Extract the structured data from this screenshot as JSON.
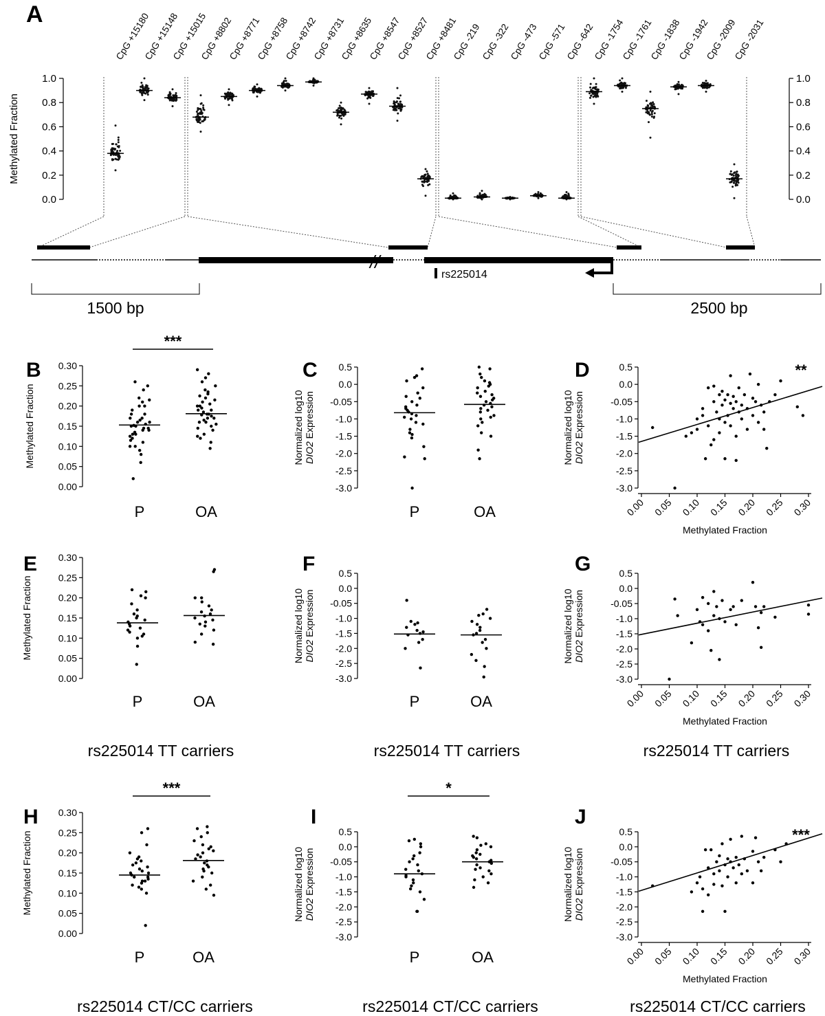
{
  "figure": {
    "panel_letters": [
      "A",
      "B",
      "C",
      "D",
      "E",
      "F",
      "G",
      "H",
      "I",
      "J"
    ],
    "groups": [
      "P",
      "OA"
    ],
    "ylabel_methylation": "Methylated Fraction",
    "ylabel_expression_line1": "Normalized log10",
    "ylabel_expression_gene": "DIO2",
    "ylabel_expression_rest": " Expression",
    "xlabel_methylation": "Methylated Fraction",
    "row_captions": [
      "rs225014 TT carriers",
      "rs225014 CT/CC carriers"
    ]
  },
  "panel_a": {
    "snp_label": "rs225014",
    "left_scale_label": "1500 bp",
    "right_scale_label": "2500 bp",
    "y_ticks": [
      "0.0",
      "0.2",
      "0.4",
      "0.6",
      "0.8",
      "1.0"
    ]
  },
  "chart_data": [
    {
      "panel": "A",
      "type": "scatter",
      "ylabel": "Methylated Fraction",
      "ylim": [
        0,
        1
      ],
      "categories": [
        "CpG +15180",
        "CpG +15148",
        "CpG +15015",
        "CpG +8802",
        "CpG +8771",
        "CpG +8758",
        "CpG +8742",
        "CpG +8731",
        "CpG +8635",
        "CpG +8547",
        "CpG +8527",
        "CpG +8481",
        "CpG -219",
        "CpG -322",
        "CpG -473",
        "CpG -571",
        "CpG -642",
        "CpG -1754",
        "CpG -1761",
        "CpG -1838",
        "CpG -1942",
        "CpG -2009",
        "CpG -2031"
      ],
      "medians": [
        0.38,
        0.9,
        0.84,
        0.68,
        0.85,
        0.9,
        0.94,
        0.97,
        0.72,
        0.87,
        0.77,
        0.17,
        0.01,
        0.02,
        0.01,
        0.03,
        0.01,
        0.89,
        0.94,
        0.75,
        0.93,
        0.94,
        0.17
      ],
      "mins": [
        0.24,
        0.82,
        0.77,
        0.56,
        0.78,
        0.85,
        0.9,
        0.94,
        0.62,
        0.79,
        0.65,
        0.03,
        0.0,
        0.0,
        0.0,
        0.01,
        0.0,
        0.79,
        0.89,
        0.51,
        0.87,
        0.89,
        0.01
      ],
      "maxs": [
        0.61,
        1.0,
        0.91,
        0.86,
        0.91,
        0.95,
        1.0,
        1.0,
        0.8,
        0.92,
        0.92,
        0.25,
        0.05,
        0.07,
        0.02,
        0.06,
        0.06,
        1.0,
        1.0,
        0.89,
        0.97,
        0.98,
        0.29
      ]
    },
    {
      "panel": "B",
      "type": "scatter",
      "ylabel": "Methylated Fraction",
      "ylim": [
        0,
        0.3
      ],
      "categories": [
        "P",
        "OA"
      ],
      "significance": "***",
      "series": [
        {
          "name": "P",
          "median": 0.153,
          "values": [
            0.02,
            0.06,
            0.08,
            0.09,
            0.1,
            0.1,
            0.11,
            0.115,
            0.12,
            0.125,
            0.13,
            0.13,
            0.135,
            0.14,
            0.14,
            0.145,
            0.145,
            0.15,
            0.15,
            0.152,
            0.155,
            0.16,
            0.16,
            0.165,
            0.17,
            0.17,
            0.18,
            0.18,
            0.19,
            0.2,
            0.2,
            0.21,
            0.215,
            0.22,
            0.24,
            0.25,
            0.26
          ]
        },
        {
          "name": "OA",
          "median": 0.181,
          "values": [
            0.095,
            0.11,
            0.12,
            0.125,
            0.13,
            0.14,
            0.145,
            0.15,
            0.155,
            0.16,
            0.16,
            0.165,
            0.17,
            0.17,
            0.175,
            0.178,
            0.18,
            0.18,
            0.185,
            0.19,
            0.19,
            0.195,
            0.2,
            0.2,
            0.205,
            0.21,
            0.215,
            0.22,
            0.225,
            0.23,
            0.235,
            0.24,
            0.25,
            0.26,
            0.27,
            0.28,
            0.29
          ]
        }
      ]
    },
    {
      "panel": "C",
      "type": "scatter",
      "ylabel": "Normalized log10 DIO2 Expression",
      "ylim": [
        -3,
        0.5
      ],
      "categories": [
        "P",
        "OA"
      ],
      "series": [
        {
          "name": "P",
          "median": -0.82,
          "values": [
            -3.0,
            -2.15,
            -2.1,
            -1.8,
            -1.55,
            -1.45,
            -1.4,
            -1.3,
            -1.15,
            -1.1,
            -1.0,
            -0.95,
            -0.9,
            -0.85,
            -0.8,
            -0.75,
            -0.7,
            -0.65,
            -0.6,
            -0.5,
            -0.4,
            -0.35,
            -0.25,
            -0.1,
            0.1,
            0.2,
            0.25,
            0.45
          ]
        },
        {
          "name": "OA",
          "median": -0.58,
          "values": [
            -2.15,
            -1.9,
            -1.5,
            -1.4,
            -1.2,
            -1.1,
            -1.0,
            -0.95,
            -0.9,
            -0.8,
            -0.75,
            -0.7,
            -0.65,
            -0.6,
            -0.55,
            -0.5,
            -0.45,
            -0.4,
            -0.35,
            -0.3,
            -0.25,
            -0.2,
            -0.1,
            -0.05,
            0.0,
            0.05,
            0.1,
            0.2,
            0.3,
            0.45,
            0.5
          ]
        }
      ]
    },
    {
      "panel": "D",
      "type": "scatter",
      "xlabel": "Methylated Fraction",
      "ylabel": "Normalized log10 DIO2 Expression",
      "xlim": [
        0,
        0.3
      ],
      "ylim": [
        -3,
        0.5
      ],
      "significance": "**",
      "regression": {
        "intercept": -1.65,
        "slope": 4.9
      },
      "points": [
        [
          0.02,
          -1.25
        ],
        [
          0.06,
          -3.0
        ],
        [
          0.08,
          -1.5
        ],
        [
          0.09,
          -1.4
        ],
        [
          0.1,
          -1.3
        ],
        [
          0.1,
          -1.0
        ],
        [
          0.11,
          -0.7
        ],
        [
          0.11,
          -0.9
        ],
        [
          0.115,
          -2.15
        ],
        [
          0.12,
          -0.1
        ],
        [
          0.12,
          -1.2
        ],
        [
          0.125,
          -1.75
        ],
        [
          0.13,
          -0.5
        ],
        [
          0.13,
          -1.6
        ],
        [
          0.13,
          -0.05
        ],
        [
          0.135,
          -0.8
        ],
        [
          0.14,
          -0.3
        ],
        [
          0.14,
          -1.0
        ],
        [
          0.14,
          -1.4
        ],
        [
          0.145,
          -0.6
        ],
        [
          0.145,
          -0.2
        ],
        [
          0.15,
          -0.45
        ],
        [
          0.15,
          -1.1
        ],
        [
          0.15,
          -2.15
        ],
        [
          0.155,
          -0.3
        ],
        [
          0.155,
          -0.9
        ],
        [
          0.16,
          -0.55
        ],
        [
          0.16,
          -1.2
        ],
        [
          0.16,
          0.25
        ],
        [
          0.165,
          -0.7
        ],
        [
          0.165,
          -0.35
        ],
        [
          0.17,
          -0.5
        ],
        [
          0.17,
          -1.5
        ],
        [
          0.17,
          -2.2
        ],
        [
          0.175,
          -0.8
        ],
        [
          0.175,
          -0.1
        ],
        [
          0.18,
          -0.6
        ],
        [
          0.18,
          -1.0
        ],
        [
          0.185,
          -0.3
        ],
        [
          0.19,
          -0.7
        ],
        [
          0.19,
          -1.3
        ],
        [
          0.195,
          0.3
        ],
        [
          0.2,
          -0.4
        ],
        [
          0.2,
          -0.9
        ],
        [
          0.205,
          -0.5
        ],
        [
          0.21,
          -1.1
        ],
        [
          0.21,
          0.0
        ],
        [
          0.215,
          -0.6
        ],
        [
          0.22,
          -0.8
        ],
        [
          0.22,
          -1.3
        ],
        [
          0.225,
          -1.85
        ],
        [
          0.23,
          -0.5
        ],
        [
          0.24,
          -0.3
        ],
        [
          0.25,
          0.1
        ],
        [
          0.28,
          -0.65
        ],
        [
          0.29,
          -0.9
        ]
      ]
    },
    {
      "panel": "E",
      "type": "scatter",
      "ylabel": "Methylated Fraction",
      "ylim": [
        0,
        0.3
      ],
      "categories": [
        "P",
        "OA"
      ],
      "series": [
        {
          "name": "P",
          "median": 0.138,
          "values": [
            0.035,
            0.08,
            0.1,
            0.105,
            0.11,
            0.115,
            0.12,
            0.125,
            0.13,
            0.135,
            0.14,
            0.145,
            0.15,
            0.155,
            0.16,
            0.17,
            0.185,
            0.2,
            0.205,
            0.215,
            0.22
          ]
        },
        {
          "name": "OA",
          "median": 0.156,
          "values": [
            0.085,
            0.09,
            0.11,
            0.12,
            0.13,
            0.135,
            0.14,
            0.145,
            0.15,
            0.155,
            0.16,
            0.165,
            0.17,
            0.18,
            0.19,
            0.2,
            0.2,
            0.265,
            0.27
          ]
        }
      ]
    },
    {
      "panel": "F",
      "type": "scatter",
      "ylabel": "Normalized log10 DIO2 Expression",
      "ylim": [
        -3,
        0.5
      ],
      "categories": [
        "P",
        "OA"
      ],
      "series": [
        {
          "name": "P",
          "median": -1.52,
          "values": [
            -2.65,
            -2.0,
            -1.8,
            -1.7,
            -1.55,
            -1.5,
            -1.45,
            -1.4,
            -1.3,
            -1.2,
            -1.15,
            -1.1,
            -0.4
          ]
        },
        {
          "name": "OA",
          "median": -1.55,
          "values": [
            -2.95,
            -2.6,
            -2.4,
            -2.2,
            -2.0,
            -1.8,
            -1.7,
            -1.55,
            -1.5,
            -1.4,
            -1.3,
            -1.2,
            -1.1,
            -1.0,
            -0.9,
            -0.85,
            -0.7
          ]
        }
      ]
    },
    {
      "panel": "G",
      "type": "scatter",
      "xlabel": "Methylated Fraction",
      "ylabel": "Normalized log10 DIO2 Expression",
      "xlim": [
        0,
        0.3
      ],
      "ylim": [
        -3,
        0.5
      ],
      "regression": {
        "intercept": -1.52,
        "slope": 3.7
      },
      "points": [
        [
          0.05,
          -3.0
        ],
        [
          0.06,
          -0.35
        ],
        [
          0.065,
          -0.9
        ],
        [
          0.09,
          -1.8
        ],
        [
          0.1,
          -0.7
        ],
        [
          0.105,
          -1.1
        ],
        [
          0.11,
          -0.3
        ],
        [
          0.11,
          -1.2
        ],
        [
          0.12,
          -0.5
        ],
        [
          0.12,
          -1.4
        ],
        [
          0.125,
          -2.05
        ],
        [
          0.13,
          -0.1
        ],
        [
          0.13,
          -0.9
        ],
        [
          0.135,
          -0.6
        ],
        [
          0.14,
          -1.0
        ],
        [
          0.14,
          -2.35
        ],
        [
          0.145,
          -0.4
        ],
        [
          0.15,
          -1.1
        ],
        [
          0.16,
          -0.7
        ],
        [
          0.165,
          -0.6
        ],
        [
          0.17,
          -1.2
        ],
        [
          0.18,
          -0.4
        ],
        [
          0.2,
          0.2
        ],
        [
          0.205,
          -0.6
        ],
        [
          0.21,
          -1.3
        ],
        [
          0.215,
          -0.8
        ],
        [
          0.215,
          -1.95
        ],
        [
          0.22,
          -0.6
        ],
        [
          0.24,
          -0.95
        ],
        [
          0.3,
          -0.55
        ],
        [
          0.3,
          -0.85
        ]
      ]
    },
    {
      "panel": "H",
      "type": "scatter",
      "ylabel": "Methylated Fraction",
      "ylim": [
        0,
        0.3
      ],
      "categories": [
        "P",
        "OA"
      ],
      "significance": "***",
      "series": [
        {
          "name": "P",
          "median": 0.145,
          "values": [
            0.02,
            0.1,
            0.11,
            0.115,
            0.12,
            0.125,
            0.13,
            0.13,
            0.135,
            0.14,
            0.14,
            0.145,
            0.15,
            0.15,
            0.155,
            0.16,
            0.165,
            0.17,
            0.175,
            0.18,
            0.185,
            0.19,
            0.2,
            0.22,
            0.25,
            0.26
          ]
        },
        {
          "name": "OA",
          "median": 0.181,
          "values": [
            0.095,
            0.11,
            0.12,
            0.13,
            0.14,
            0.15,
            0.155,
            0.16,
            0.165,
            0.17,
            0.175,
            0.18,
            0.185,
            0.19,
            0.195,
            0.2,
            0.205,
            0.21,
            0.215,
            0.22,
            0.23,
            0.24,
            0.25,
            0.26,
            0.265
          ]
        }
      ]
    },
    {
      "panel": "I",
      "type": "scatter",
      "ylabel": "Normalized log10 DIO2 Expression",
      "ylim": [
        -3,
        0.5
      ],
      "categories": [
        "P",
        "OA"
      ],
      "significance": "*",
      "series": [
        {
          "name": "P",
          "median": -0.9,
          "values": [
            -2.15,
            -2.15,
            -1.75,
            -1.5,
            -1.4,
            -1.3,
            -1.2,
            -1.1,
            -1.0,
            -0.95,
            -0.9,
            -0.8,
            -0.75,
            -0.6,
            -0.5,
            -0.4,
            -0.3,
            -0.2,
            0.0,
            0.1,
            0.2,
            0.25
          ]
        },
        {
          "name": "OA",
          "median": -0.5,
          "values": [
            -1.35,
            -1.2,
            -1.1,
            -1.0,
            -0.9,
            -0.8,
            -0.75,
            -0.7,
            -0.6,
            -0.55,
            -0.5,
            -0.45,
            -0.4,
            -0.35,
            -0.3,
            -0.25,
            -0.2,
            -0.1,
            0.0,
            0.05,
            0.1,
            0.3,
            0.35
          ]
        }
      ]
    },
    {
      "panel": "J",
      "type": "scatter",
      "xlabel": "Methylated Fraction",
      "ylabel": "Normalized log10 DIO2 Expression",
      "xlim": [
        0,
        0.3
      ],
      "ylim": [
        -3,
        0.5
      ],
      "significance": "***",
      "regression": {
        "intercept": -1.45,
        "slope": 5.8
      },
      "points": [
        [
          0.02,
          -1.3
        ],
        [
          0.09,
          -1.5
        ],
        [
          0.1,
          -1.2
        ],
        [
          0.105,
          -1.0
        ],
        [
          0.11,
          -2.15
        ],
        [
          0.11,
          -1.4
        ],
        [
          0.115,
          -0.1
        ],
        [
          0.12,
          -0.7
        ],
        [
          0.12,
          -1.6
        ],
        [
          0.125,
          -0.1
        ],
        [
          0.13,
          -0.9
        ],
        [
          0.13,
          -1.25
        ],
        [
          0.135,
          -0.5
        ],
        [
          0.14,
          -0.3
        ],
        [
          0.14,
          -0.8
        ],
        [
          0.145,
          -1.3
        ],
        [
          0.145,
          0.1
        ],
        [
          0.15,
          -0.6
        ],
        [
          0.15,
          -2.15
        ],
        [
          0.155,
          -0.4
        ],
        [
          0.155,
          -1.0
        ],
        [
          0.16,
          -0.5
        ],
        [
          0.16,
          0.25
        ],
        [
          0.165,
          -0.7
        ],
        [
          0.17,
          -0.35
        ],
        [
          0.17,
          -1.2
        ],
        [
          0.175,
          -0.6
        ],
        [
          0.18,
          -0.9
        ],
        [
          0.18,
          0.35
        ],
        [
          0.185,
          -0.4
        ],
        [
          0.19,
          -0.8
        ],
        [
          0.2,
          -0.15
        ],
        [
          0.2,
          -1.2
        ],
        [
          0.205,
          0.3
        ],
        [
          0.21,
          -0.5
        ],
        [
          0.215,
          -0.8
        ],
        [
          0.22,
          -0.35
        ],
        [
          0.24,
          -0.1
        ],
        [
          0.25,
          -0.5
        ],
        [
          0.26,
          0.1
        ]
      ]
    }
  ]
}
